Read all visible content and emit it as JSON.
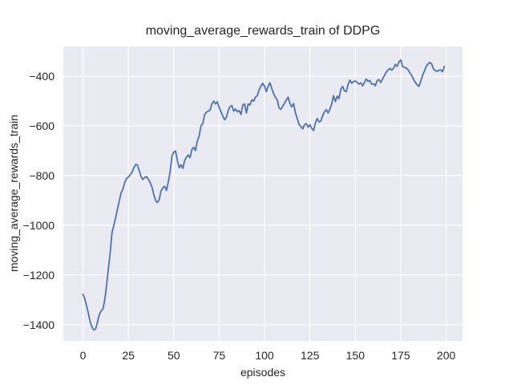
{
  "chart_data": {
    "type": "line",
    "title": "moving_average_rewards_train of DDPG",
    "xlabel": "episodes",
    "ylabel": "moving_average_rewards_train",
    "grid": true,
    "legend_position": "none",
    "x_start": 0,
    "x_step": 1,
    "xlim": [
      -10.8,
      209.0
    ],
    "ylim": [
      -1466,
      -280
    ],
    "xticks": [
      {
        "value": 0,
        "label": "0"
      },
      {
        "value": 25,
        "label": "25"
      },
      {
        "value": 50,
        "label": "50"
      },
      {
        "value": 75,
        "label": "75"
      },
      {
        "value": 100,
        "label": "100"
      },
      {
        "value": 125,
        "label": "125"
      },
      {
        "value": 150,
        "label": "150"
      },
      {
        "value": 175,
        "label": "175"
      },
      {
        "value": 200,
        "label": "200"
      }
    ],
    "yticks": [
      {
        "value": -400,
        "label": "−400"
      },
      {
        "value": -600,
        "label": "−600"
      },
      {
        "value": -800,
        "label": "−800"
      },
      {
        "value": -1000,
        "label": "−1000"
      },
      {
        "value": -1200,
        "label": "−1200"
      },
      {
        "value": -1400,
        "label": "−1400"
      }
    ],
    "values": [
      -1278,
      -1295,
      -1325,
      -1355,
      -1390,
      -1410,
      -1422,
      -1418,
      -1390,
      -1360,
      -1345,
      -1338,
      -1300,
      -1245,
      -1175,
      -1110,
      -1030,
      -1000,
      -970,
      -935,
      -903,
      -870,
      -855,
      -828,
      -812,
      -806,
      -797,
      -787,
      -770,
      -755,
      -757,
      -780,
      -804,
      -815,
      -808,
      -804,
      -815,
      -828,
      -846,
      -876,
      -900,
      -909,
      -897,
      -862,
      -849,
      -843,
      -860,
      -825,
      -785,
      -722,
      -705,
      -701,
      -740,
      -768,
      -757,
      -771,
      -740,
      -726,
      -717,
      -728,
      -695,
      -686,
      -699,
      -660,
      -640,
      -600,
      -591,
      -554,
      -545,
      -540,
      -536,
      -511,
      -500,
      -511,
      -503,
      -525,
      -543,
      -560,
      -575,
      -565,
      -538,
      -522,
      -518,
      -540,
      -532,
      -543,
      -538,
      -554,
      -516,
      -511,
      -548,
      -511,
      -516,
      -495,
      -500,
      -484,
      -478,
      -455,
      -440,
      -428,
      -440,
      -462,
      -440,
      -426,
      -450,
      -470,
      -485,
      -495,
      -528,
      -533,
      -520,
      -509,
      -495,
      -484,
      -510,
      -523,
      -509,
      -548,
      -570,
      -595,
      -602,
      -612,
      -595,
      -591,
      -605,
      -595,
      -610,
      -618,
      -588,
      -570,
      -584,
      -580,
      -559,
      -543,
      -534,
      -548,
      -532,
      -510,
      -478,
      -502,
      -480,
      -490,
      -452,
      -441,
      -458,
      -462,
      -432,
      -415,
      -428,
      -421,
      -419,
      -425,
      -432,
      -426,
      -438,
      -424,
      -411,
      -421,
      -417,
      -432,
      -430,
      -438,
      -417,
      -413,
      -425,
      -410,
      -397,
      -383,
      -375,
      -368,
      -375,
      -368,
      -352,
      -360,
      -342,
      -334,
      -360,
      -364,
      -367,
      -373,
      -386,
      -396,
      -412,
      -424,
      -434,
      -441,
      -420,
      -396,
      -380,
      -360,
      -350,
      -344,
      -350,
      -370,
      -377,
      -380,
      -376,
      -374,
      -382,
      -360
    ],
    "colors": {
      "line": "#4C72B0",
      "axes_background": "#EAEAF2",
      "grid": "#FFFFFF",
      "text": "#262626",
      "figure_background": "#FFFFFF"
    }
  }
}
